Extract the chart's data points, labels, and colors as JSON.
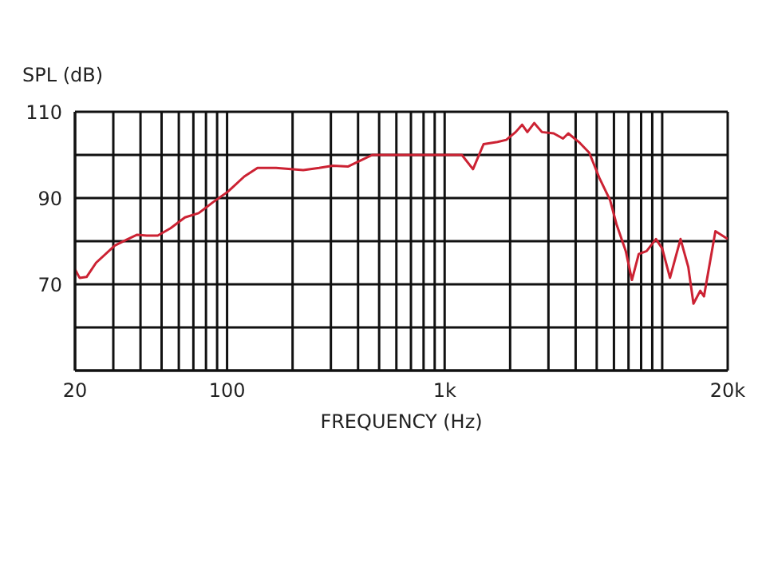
{
  "chart_data": {
    "type": "line",
    "xlabel": "FREQUENCY (Hz)",
    "ylabel": "SPL (dB)",
    "log": "x",
    "grid": true,
    "legend": false,
    "xlim": [
      20,
      20000
    ],
    "ylim": [
      50,
      110
    ],
    "xticks": [
      20,
      {
        "value": 30,
        "label": null
      },
      {
        "value": 40,
        "label": null
      },
      {
        "value": 50,
        "label": null
      },
      {
        "value": 60,
        "label": null
      },
      {
        "value": 70,
        "label": null
      },
      {
        "value": 80,
        "label": null
      },
      {
        "value": 90,
        "label": null
      },
      100,
      {
        "value": 200,
        "label": null
      },
      {
        "value": 300,
        "label": null
      },
      {
        "value": 400,
        "label": null
      },
      {
        "value": 500,
        "label": null
      },
      {
        "value": 600,
        "label": null
      },
      {
        "value": 700,
        "label": null
      },
      {
        "value": 800,
        "label": null
      },
      {
        "value": 900,
        "label": null
      },
      {
        "value": 1000,
        "label": "1k"
      },
      {
        "value": 2000,
        "label": null
      },
      {
        "value": 3000,
        "label": null
      },
      {
        "value": 4000,
        "label": null
      },
      {
        "value": 5000,
        "label": null
      },
      {
        "value": 6000,
        "label": null
      },
      {
        "value": 7000,
        "label": null
      },
      {
        "value": 8000,
        "label": null
      },
      {
        "value": 9000,
        "label": null
      },
      {
        "value": 10000,
        "label": null
      },
      {
        "value": 20000,
        "label": "20k"
      }
    ],
    "yticks": [
      {
        "value": 50,
        "label": null
      },
      {
        "value": 60,
        "label": null
      },
      70,
      {
        "value": 80,
        "label": null
      },
      90,
      {
        "value": 100,
        "label": null
      },
      110
    ],
    "x": [
      20,
      21,
      22.6,
      25,
      30.5,
      35,
      38.6,
      42.7,
      48,
      55,
      64,
      74,
      86,
      101,
      120,
      138,
      168,
      224,
      265,
      306,
      359,
      415,
      465,
      520,
      1200,
      1350,
      1510,
      1750,
      1920,
      2120,
      2270,
      2400,
      2580,
      2800,
      3170,
      3500,
      3700,
      4140,
      4620,
      5160,
      5760,
      6160,
      6800,
      7260,
      7800,
      8480,
      9360,
      10000,
      10860,
      12140,
      13180,
      13920,
      14960,
      15560,
      17560,
      20000
    ],
    "series": [
      {
        "color": "#cc2233",
        "values": [
          73.5,
          71.5,
          71.7,
          75,
          79,
          80.5,
          81.5,
          81.3,
          81.3,
          83,
          85.5,
          86.5,
          89,
          91.5,
          95,
          97,
          97,
          96.5,
          97,
          97.5,
          97.3,
          98.8,
          100,
          100,
          100,
          96.7,
          102.5,
          103,
          103.5,
          105.3,
          107,
          105.3,
          107.4,
          105.3,
          105,
          103.8,
          105,
          103,
          100.5,
          94.5,
          89.5,
          84,
          77.7,
          71,
          77,
          77.7,
          80.5,
          78.3,
          71.5,
          80.5,
          74,
          65.5,
          68.5,
          67.2,
          82.3,
          80.5
        ]
      }
    ]
  }
}
